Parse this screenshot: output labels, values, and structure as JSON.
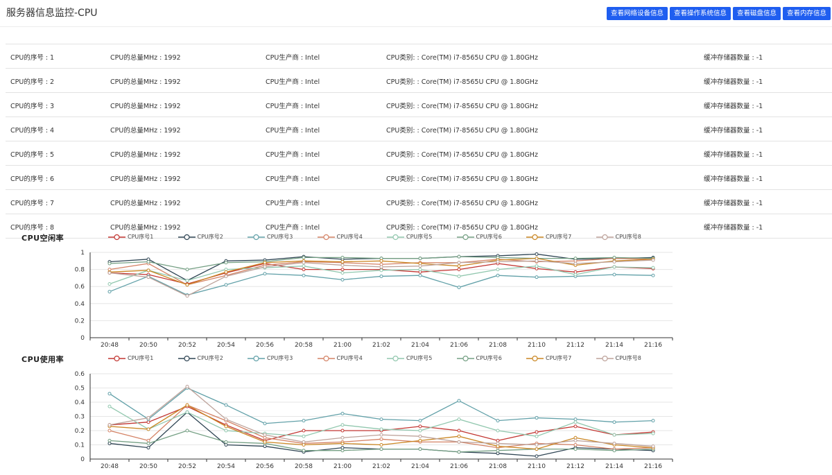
{
  "header": {
    "title": "服务器信息监控-CPU",
    "buttons": [
      "查看网络设备信息",
      "查看操作系统信息",
      "查看磁盘信息",
      "查看内存信息"
    ]
  },
  "cpu_table": {
    "rows": [
      {
        "index": "CPU的序号 : 1",
        "mhz": "CPU的总量MHz : 1992",
        "vendor": "CPU生产商 : Intel",
        "model": "CPU类别: : Core(TM) i7-8565U CPU @ 1.80GHz",
        "cache": "缓冲存储器数量 : -1"
      },
      {
        "index": "CPU的序号 : 2",
        "mhz": "CPU的总量MHz : 1992",
        "vendor": "CPU生产商 : Intel",
        "model": "CPU类别: : Core(TM) i7-8565U CPU @ 1.80GHz",
        "cache": "缓冲存储器数量 : -1"
      },
      {
        "index": "CPU的序号 : 3",
        "mhz": "CPU的总量MHz : 1992",
        "vendor": "CPU生产商 : Intel",
        "model": "CPU类别: : Core(TM) i7-8565U CPU @ 1.80GHz",
        "cache": "缓冲存储器数量 : -1"
      },
      {
        "index": "CPU的序号 : 4",
        "mhz": "CPU的总量MHz : 1992",
        "vendor": "CPU生产商 : Intel",
        "model": "CPU类别: : Core(TM) i7-8565U CPU @ 1.80GHz",
        "cache": "缓冲存储器数量 : -1"
      },
      {
        "index": "CPU的序号 : 5",
        "mhz": "CPU的总量MHz : 1992",
        "vendor": "CPU生产商 : Intel",
        "model": "CPU类别: : Core(TM) i7-8565U CPU @ 1.80GHz",
        "cache": "缓冲存储器数量 : -1"
      },
      {
        "index": "CPU的序号 : 6",
        "mhz": "CPU的总量MHz : 1992",
        "vendor": "CPU生产商 : Intel",
        "model": "CPU类别: : Core(TM) i7-8565U CPU @ 1.80GHz",
        "cache": "缓冲存储器数量 : -1"
      },
      {
        "index": "CPU的序号 : 7",
        "mhz": "CPU的总量MHz : 1992",
        "vendor": "CPU生产商 : Intel",
        "model": "CPU类别: : Core(TM) i7-8565U CPU @ 1.80GHz",
        "cache": "缓冲存储器数量 : -1"
      },
      {
        "index": "CPU的序号 : 8",
        "mhz": "CPU的总量MHz : 1992",
        "vendor": "CPU生产商 : Intel",
        "model": "CPU类别: : Core(TM) i7-8565U CPU @ 1.80GHz",
        "cache": "缓冲存储器数量 : -1"
      }
    ]
  },
  "colors": {
    "button": "#1f5ef0",
    "series": [
      "#c23531",
      "#2f4554",
      "#61a0a8",
      "#d48265",
      "#91c7ae",
      "#749f83",
      "#ca8622",
      "#bda29a"
    ]
  },
  "chart_data": [
    {
      "type": "line",
      "title": "CPU空闲率",
      "x": [
        "20:48",
        "20:50",
        "20:52",
        "20:54",
        "20:56",
        "20:58",
        "21:00",
        "21:02",
        "21:04",
        "21:06",
        "21:08",
        "21:10",
        "21:12",
        "21:14",
        "21:16"
      ],
      "ylim": [
        0,
        1
      ],
      "yticks": [
        "0",
        "0.2",
        "0.4",
        "0.6",
        "0.8",
        "1"
      ],
      "grid": true,
      "legend_position": "top",
      "series": [
        {
          "name": "CPU序号1",
          "values": [
            0.76,
            0.74,
            0.63,
            0.76,
            0.87,
            0.8,
            0.8,
            0.8,
            0.77,
            0.8,
            0.87,
            0.81,
            0.77,
            0.83,
            0.81
          ]
        },
        {
          "name": "CPU序号2",
          "values": [
            0.89,
            0.92,
            0.67,
            0.9,
            0.91,
            0.95,
            0.92,
            0.93,
            0.93,
            0.95,
            0.96,
            0.98,
            0.92,
            0.93,
            0.94
          ]
        },
        {
          "name": "CPU序号3",
          "values": [
            0.54,
            0.72,
            0.5,
            0.62,
            0.75,
            0.73,
            0.68,
            0.72,
            0.73,
            0.59,
            0.73,
            0.71,
            0.72,
            0.74,
            0.73
          ]
        },
        {
          "name": "CPU序号4",
          "values": [
            0.8,
            0.87,
            0.62,
            0.73,
            0.85,
            0.89,
            0.88,
            0.86,
            0.88,
            0.88,
            0.92,
            0.89,
            0.9,
            0.93,
            0.92
          ]
        },
        {
          "name": "CPU序号5",
          "values": [
            0.63,
            0.79,
            0.67,
            0.8,
            0.82,
            0.84,
            0.76,
            0.79,
            0.8,
            0.72,
            0.8,
            0.84,
            0.74,
            0.83,
            0.82
          ]
        },
        {
          "name": "CPU序号6",
          "values": [
            0.87,
            0.89,
            0.8,
            0.88,
            0.89,
            0.94,
            0.94,
            0.93,
            0.93,
            0.95,
            0.94,
            0.93,
            0.93,
            0.94,
            0.93
          ]
        },
        {
          "name": "CPU序号7",
          "values": [
            0.77,
            0.79,
            0.62,
            0.77,
            0.88,
            0.9,
            0.89,
            0.9,
            0.87,
            0.84,
            0.91,
            0.93,
            0.85,
            0.9,
            0.92
          ]
        },
        {
          "name": "CPU序号8",
          "values": [
            0.76,
            0.71,
            0.49,
            0.72,
            0.83,
            0.88,
            0.85,
            0.83,
            0.84,
            0.88,
            0.89,
            0.9,
            0.87,
            0.89,
            0.91
          ]
        }
      ]
    },
    {
      "type": "line",
      "title": "CPU使用率",
      "x": [
        "20:48",
        "20:50",
        "20:52",
        "20:54",
        "20:56",
        "20:58",
        "21:00",
        "21:02",
        "21:04",
        "21:06",
        "21:08",
        "21:10",
        "21:12",
        "21:14",
        "21:16"
      ],
      "ylim": [
        0,
        0.6
      ],
      "yticks": [
        "0",
        "0.1",
        "0.2",
        "0.3",
        "0.4",
        "0.5",
        "0.6"
      ],
      "grid": true,
      "legend_position": "top",
      "series": [
        {
          "name": "CPU序号1",
          "values": [
            0.24,
            0.26,
            0.37,
            0.24,
            0.13,
            0.2,
            0.2,
            0.2,
            0.23,
            0.2,
            0.13,
            0.19,
            0.23,
            0.17,
            0.19
          ]
        },
        {
          "name": "CPU序号2",
          "values": [
            0.11,
            0.08,
            0.33,
            0.1,
            0.09,
            0.05,
            0.08,
            0.07,
            0.07,
            0.05,
            0.04,
            0.02,
            0.08,
            0.07,
            0.06
          ]
        },
        {
          "name": "CPU序号3",
          "values": [
            0.46,
            0.28,
            0.5,
            0.38,
            0.25,
            0.27,
            0.32,
            0.28,
            0.27,
            0.41,
            0.27,
            0.29,
            0.28,
            0.26,
            0.27
          ]
        },
        {
          "name": "CPU序号4",
          "values": [
            0.2,
            0.13,
            0.38,
            0.27,
            0.15,
            0.11,
            0.12,
            0.14,
            0.12,
            0.12,
            0.08,
            0.11,
            0.1,
            0.07,
            0.08
          ]
        },
        {
          "name": "CPU序号5",
          "values": [
            0.37,
            0.21,
            0.33,
            0.2,
            0.18,
            0.16,
            0.24,
            0.21,
            0.2,
            0.28,
            0.2,
            0.16,
            0.26,
            0.17,
            0.18
          ]
        },
        {
          "name": "CPU序号6",
          "values": [
            0.13,
            0.11,
            0.2,
            0.12,
            0.11,
            0.06,
            0.06,
            0.07,
            0.07,
            0.05,
            0.06,
            0.07,
            0.07,
            0.06,
            0.07
          ]
        },
        {
          "name": "CPU序号7",
          "values": [
            0.23,
            0.21,
            0.38,
            0.23,
            0.12,
            0.1,
            0.11,
            0.1,
            0.13,
            0.16,
            0.09,
            0.07,
            0.15,
            0.1,
            0.08
          ]
        },
        {
          "name": "CPU序号8",
          "values": [
            0.24,
            0.29,
            0.51,
            0.28,
            0.17,
            0.12,
            0.15,
            0.17,
            0.16,
            0.12,
            0.11,
            0.1,
            0.13,
            0.11,
            0.09
          ]
        }
      ]
    }
  ]
}
